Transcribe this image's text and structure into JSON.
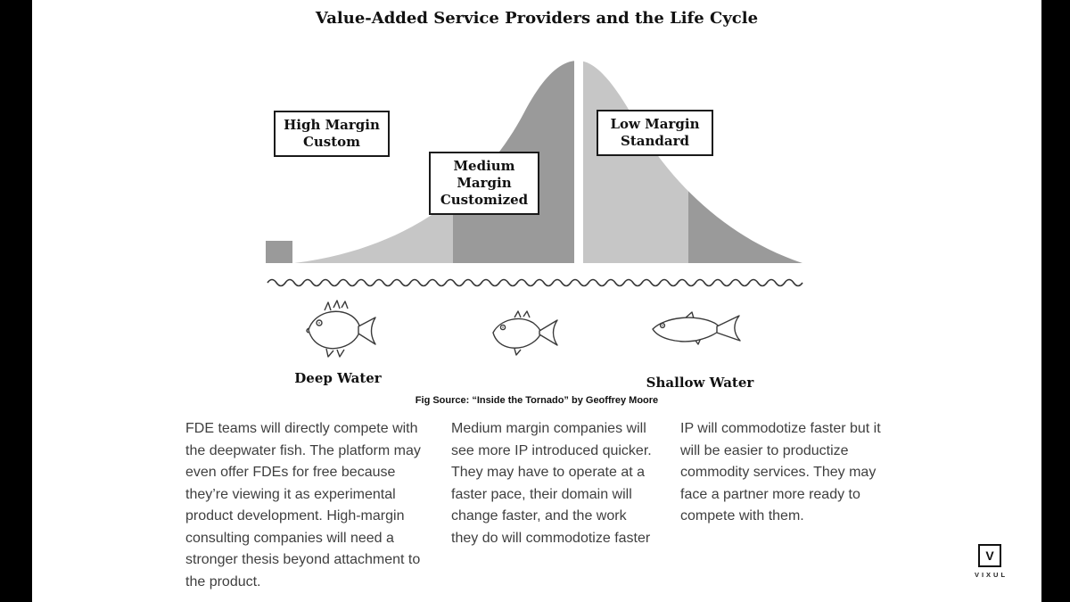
{
  "title": "Value-Added Service Providers and the Life Cycle",
  "diagram": {
    "boxes": [
      {
        "lines": [
          "High Margin",
          "Custom"
        ]
      },
      {
        "lines": [
          "Medium",
          "Margin",
          "Customized"
        ]
      },
      {
        "lines": [
          "Low Margin",
          "Standard"
        ]
      }
    ],
    "water_labels": {
      "deep": "Deep Water",
      "shallow": "Shallow Water"
    },
    "colors": {
      "light": "#c6c6c6",
      "dark": "#9a9a9a"
    }
  },
  "fig_source": "Fig Source: “Inside the Tornado” by Geoffrey Moore",
  "columns": [
    {
      "text": "FDE teams will directly compete with the deepwater fish. The platform may even offer FDEs for free because they’re viewing it as experimental product development. High-margin consulting companies will need a stronger thesis beyond attachment to the product."
    },
    {
      "text": "Medium margin companies will see more IP introduced quicker. They may have to operate at a faster pace, their domain will change faster, and the work they do will commodotize faster"
    },
    {
      "text": "IP will commodotize faster but it will be easier to productize commodity services. They may face a partner more ready to compete with them."
    }
  ],
  "logo": {
    "letter": "V",
    "name": "VIXUL"
  }
}
